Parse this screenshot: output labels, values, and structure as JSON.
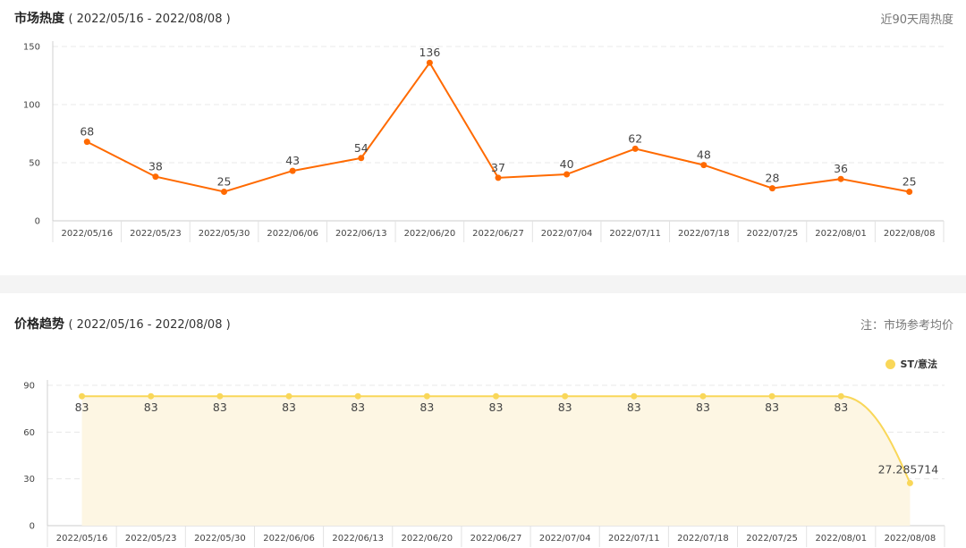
{
  "panels": {
    "heat": {
      "title": "市场热度",
      "range": "( 2022/05/16 - 2022/08/08 )",
      "note": "近90天周热度"
    },
    "price": {
      "title": "价格趋势",
      "range": "( 2022/05/16 - 2022/08/08 )",
      "note": "注：市场参考均价"
    }
  },
  "colors": {
    "heat_line": "#ff6a00",
    "price_line": "#f9d759",
    "price_area": "#fdf6e3"
  },
  "chart_data": [
    {
      "type": "line",
      "categories": [
        "2022/05/16",
        "2022/05/23",
        "2022/05/30",
        "2022/06/06",
        "2022/06/13",
        "2022/06/20",
        "2022/06/27",
        "2022/07/04",
        "2022/07/11",
        "2022/07/18",
        "2022/07/25",
        "2022/08/01",
        "2022/08/08"
      ],
      "series": [
        {
          "values": [
            68,
            38,
            25,
            43,
            54,
            136,
            37,
            40,
            62,
            48,
            28,
            36,
            25
          ]
        }
      ],
      "yticks": [
        "0",
        "50",
        "100",
        "150"
      ],
      "ylim": [
        0,
        150
      ],
      "grid": true
    },
    {
      "type": "area",
      "categories": [
        "2022/05/16",
        "2022/05/23",
        "2022/05/30",
        "2022/06/06",
        "2022/06/13",
        "2022/06/20",
        "2022/06/27",
        "2022/07/04",
        "2022/07/11",
        "2022/07/18",
        "2022/07/25",
        "2022/08/01",
        "2022/08/08"
      ],
      "series": [
        {
          "name": "ST/意法",
          "values": [
            83,
            83,
            83,
            83,
            83,
            83,
            83,
            83,
            83,
            83,
            83,
            83,
            27.285714
          ]
        }
      ],
      "yticks": [
        "0",
        "30",
        "60",
        "90"
      ],
      "ylim": [
        0,
        90
      ],
      "legend": "top-right",
      "grid": true
    }
  ]
}
